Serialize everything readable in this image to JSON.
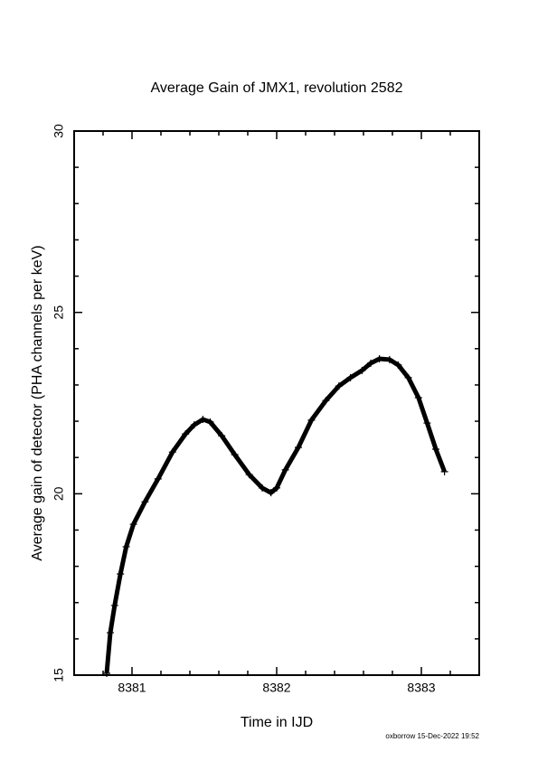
{
  "chart_data": {
    "type": "scatter",
    "title": "Average Gain of JMX1, revolution 2582",
    "x_label": "Time in IJD",
    "y_label": "Average gain of detector (PHA channels per keV)",
    "footer": "oxborrow 15-Dec-2022 19:52",
    "marker": "+",
    "color": "#000000",
    "xlim": [
      8380.6,
      8383.4
    ],
    "ylim": [
      15,
      30
    ],
    "xticks": [
      8381,
      8382,
      8383
    ],
    "yticks": [
      15,
      20,
      25,
      30
    ],
    "xminorticks": [
      8380.8,
      8381.2,
      8381.4,
      8381.6,
      8381.8,
      8382.2,
      8382.4,
      8382.6,
      8382.8,
      8383.2
    ],
    "yminorticks": [
      16,
      17,
      18,
      19,
      21,
      22,
      23,
      24,
      26,
      27,
      28,
      29
    ],
    "x": [
      8380.825,
      8380.85,
      8380.88,
      8380.92,
      8380.96,
      8381.01,
      8381.09,
      8381.18,
      8381.28,
      8381.37,
      8381.43,
      8381.49,
      8381.54,
      8381.62,
      8381.71,
      8381.81,
      8381.9,
      8381.96,
      8382.0,
      8382.06,
      8382.15,
      8382.24,
      8382.34,
      8382.43,
      8382.51,
      8382.59,
      8382.65,
      8382.71,
      8382.78,
      8382.84,
      8382.91,
      8382.98,
      8383.04,
      8383.1,
      8383.16
    ],
    "values": [
      15.05,
      16.17,
      16.92,
      17.79,
      18.54,
      19.16,
      19.78,
      20.41,
      21.15,
      21.65,
      21.9,
      22.05,
      21.98,
      21.6,
      21.08,
      20.53,
      20.16,
      20.03,
      20.16,
      20.66,
      21.28,
      22.03,
      22.57,
      22.97,
      23.2,
      23.4,
      23.6,
      23.72,
      23.7,
      23.55,
      23.2,
      22.65,
      21.95,
      21.23,
      20.61
    ]
  }
}
